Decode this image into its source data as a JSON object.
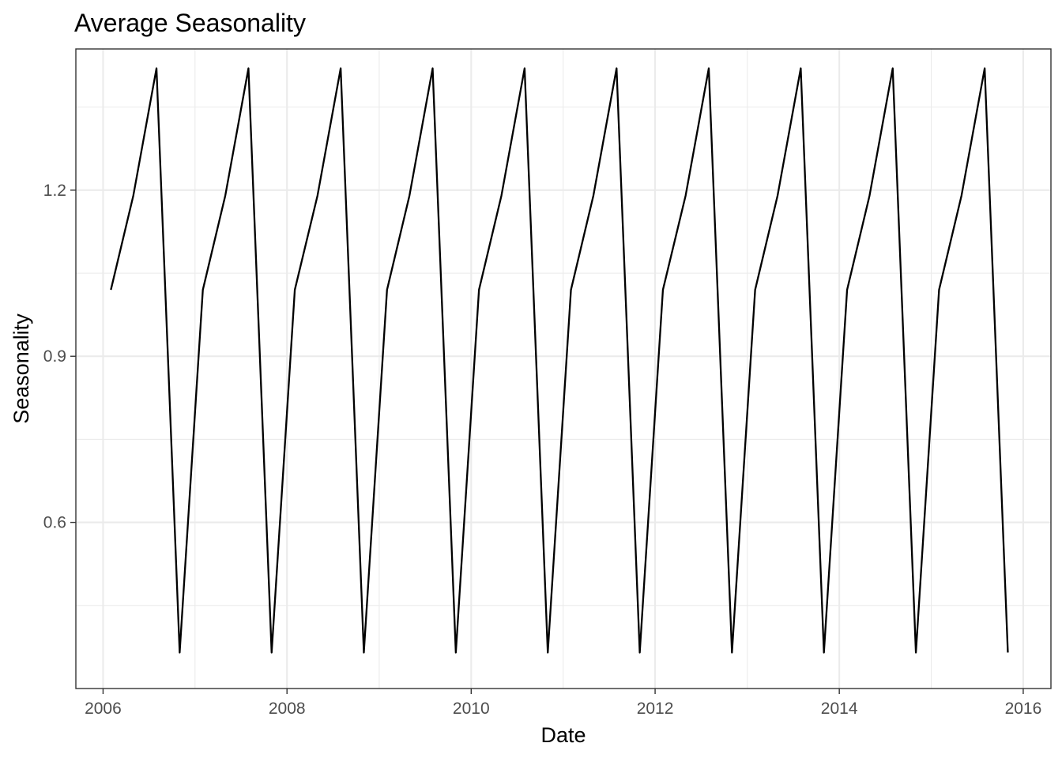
{
  "chart_data": {
    "type": "line",
    "title": "Average Seasonality",
    "xlabel": "Date",
    "ylabel": "Seasonality",
    "x_axis_type": "date",
    "xlim": [
      "2005-09-15",
      "2016-04-20"
    ],
    "ylim": [
      0.3,
      1.455
    ],
    "x_ticks": [
      {
        "value": "2006-01-01",
        "label": "2006"
      },
      {
        "value": "2008-01-01",
        "label": "2008"
      },
      {
        "value": "2010-01-01",
        "label": "2010"
      },
      {
        "value": "2012-01-01",
        "label": "2012"
      },
      {
        "value": "2014-01-01",
        "label": "2014"
      },
      {
        "value": "2016-01-01",
        "label": "2016"
      }
    ],
    "x_minor_ticks": [
      "2007-01-01",
      "2009-01-01",
      "2011-01-01",
      "2013-01-01",
      "2015-01-01"
    ],
    "y_ticks": [
      {
        "value": 0.6,
        "label": "0.6"
      },
      {
        "value": 0.9,
        "label": "0.9"
      },
      {
        "value": 1.2,
        "label": "1.2"
      }
    ],
    "y_minor_ticks": [
      0.45,
      0.75,
      1.05,
      1.35
    ],
    "grid": true,
    "legend": "none",
    "series": [
      {
        "x": [
          "2006-02-01",
          "2006-05-01",
          "2006-08-01",
          "2006-11-01",
          "2007-02-01",
          "2007-05-01",
          "2007-08-01",
          "2007-11-01",
          "2008-02-01",
          "2008-05-01",
          "2008-08-01",
          "2008-11-01",
          "2009-02-01",
          "2009-05-01",
          "2009-08-01",
          "2009-11-01",
          "2010-02-01",
          "2010-05-01",
          "2010-08-01",
          "2010-11-01",
          "2011-02-01",
          "2011-05-01",
          "2011-08-01",
          "2011-11-01",
          "2012-02-01",
          "2012-05-01",
          "2012-08-01",
          "2012-11-01",
          "2013-02-01",
          "2013-05-01",
          "2013-08-01",
          "2013-11-01",
          "2014-02-01",
          "2014-05-01",
          "2014-08-01",
          "2014-11-01",
          "2015-02-01",
          "2015-05-01",
          "2015-08-01",
          "2015-11-01"
        ],
        "values": [
          1.02,
          1.19,
          1.42,
          0.365,
          1.02,
          1.19,
          1.42,
          0.365,
          1.02,
          1.19,
          1.42,
          0.365,
          1.02,
          1.19,
          1.42,
          0.365,
          1.02,
          1.19,
          1.42,
          0.365,
          1.02,
          1.19,
          1.42,
          0.365,
          1.02,
          1.19,
          1.42,
          0.365,
          1.02,
          1.19,
          1.42,
          0.365,
          1.02,
          1.19,
          1.42,
          0.365,
          1.02,
          1.19,
          1.42,
          0.365
        ],
        "color": "#000000"
      }
    ]
  }
}
